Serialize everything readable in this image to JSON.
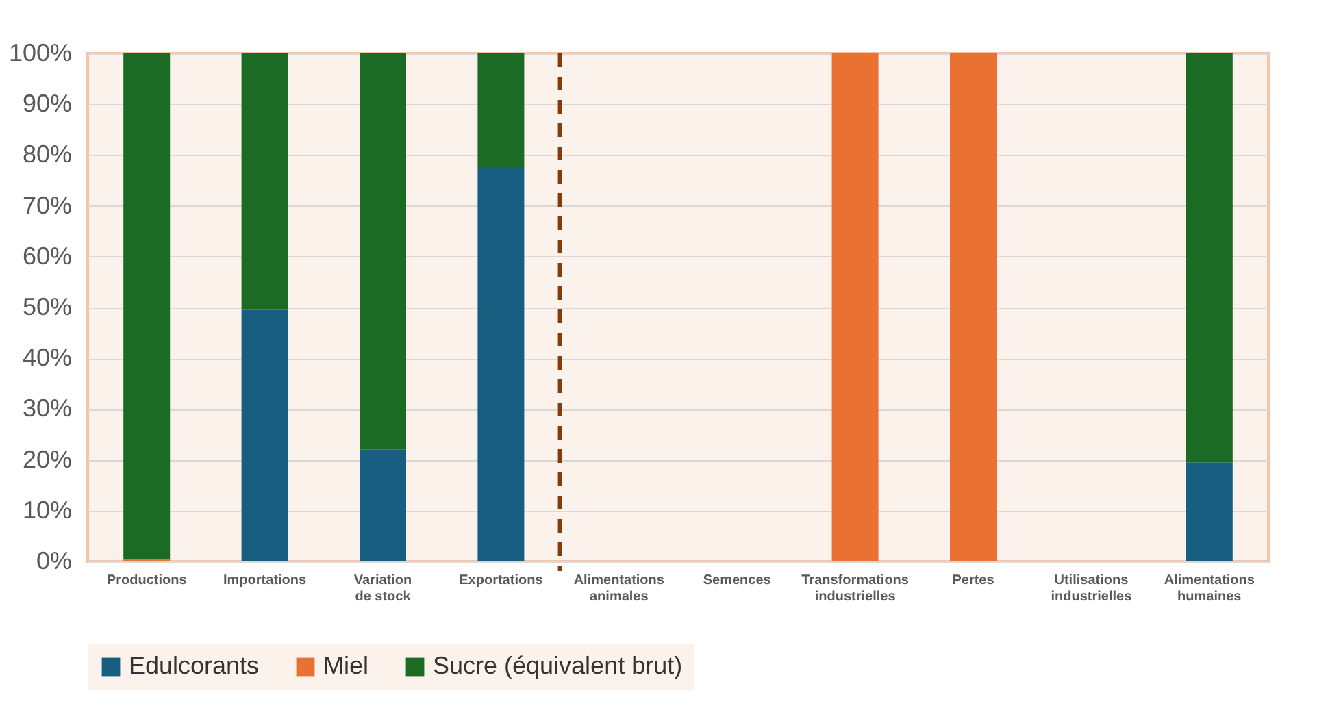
{
  "chart_data": {
    "type": "bar",
    "stacked": true,
    "categories": [
      "Productions",
      "Importations",
      "Variation de stock",
      "Exportations",
      "Alimentations animales",
      "Semences",
      "Transformations industrielles",
      "Pertes",
      "Utilisations industrielles",
      "Alimentations humaines"
    ],
    "series": [
      {
        "name": "Edulcorants",
        "color": "#175e80",
        "values": [
          0,
          49.5,
          22,
          77.5,
          0,
          0,
          0,
          0,
          0,
          19.5
        ]
      },
      {
        "name": "Miel",
        "color": "#e97132",
        "values": [
          0.5,
          0,
          0,
          0,
          0,
          0,
          100,
          100,
          0,
          0
        ]
      },
      {
        "name": "Sucre (équivalent brut)",
        "color": "#1b6b25",
        "values": [
          99.5,
          50.5,
          78,
          22.5,
          0,
          0,
          0,
          0,
          0,
          80.5
        ]
      }
    ],
    "ylim": [
      0,
      100
    ],
    "yticks": [
      {
        "value": 0,
        "label": "0%"
      },
      {
        "value": 10,
        "label": "10%"
      },
      {
        "value": 20,
        "label": "20%"
      },
      {
        "value": 30,
        "label": "30%"
      },
      {
        "value": 40,
        "label": "40%"
      },
      {
        "value": 50,
        "label": "50%"
      },
      {
        "value": 60,
        "label": "60%"
      },
      {
        "value": 70,
        "label": "70%"
      },
      {
        "value": 80,
        "label": "80%"
      },
      {
        "value": 90,
        "label": "90%"
      },
      {
        "value": 100,
        "label": "100%"
      }
    ],
    "ref_lines": [
      {
        "axis": "x",
        "value": "Alimentations animales",
        "color": "#843c0c",
        "line_style": "dashed"
      }
    ],
    "grid": "y",
    "legend": "bottom"
  }
}
